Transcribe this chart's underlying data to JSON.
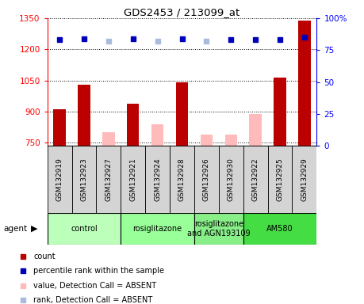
{
  "title": "GDS2453 / 213099_at",
  "samples": [
    "GSM132919",
    "GSM132923",
    "GSM132927",
    "GSM132921",
    "GSM132924",
    "GSM132928",
    "GSM132926",
    "GSM132930",
    "GSM132922",
    "GSM132925",
    "GSM132929"
  ],
  "counts": [
    910,
    1030,
    null,
    940,
    null,
    1040,
    null,
    null,
    null,
    1065,
    1340
  ],
  "counts_absent": [
    null,
    null,
    800,
    null,
    840,
    null,
    790,
    790,
    890,
    null,
    null
  ],
  "ranks": [
    83,
    84,
    null,
    84,
    null,
    84,
    null,
    83,
    83,
    83,
    85
  ],
  "ranks_absent": [
    null,
    null,
    82,
    null,
    82,
    null,
    82,
    null,
    null,
    null,
    null
  ],
  "ylim_left": [
    735,
    1350
  ],
  "ylim_right": [
    0,
    100
  ],
  "yticks_left": [
    750,
    900,
    1050,
    1200,
    1350
  ],
  "yticks_right": [
    0,
    25,
    50,
    75,
    100
  ],
  "agent_groups": [
    {
      "label": "control",
      "start": 0,
      "end": 3,
      "color": "#bbffbb"
    },
    {
      "label": "rosiglitazone",
      "start": 3,
      "end": 6,
      "color": "#99ff99"
    },
    {
      "label": "rosiglitazone\nand AGN193109",
      "start": 6,
      "end": 8,
      "color": "#88ee88"
    },
    {
      "label": "AM580",
      "start": 8,
      "end": 11,
      "color": "#44dd44"
    }
  ],
  "bar_width": 0.5,
  "bar_color_present": "#bb0000",
  "bar_color_absent": "#ffbbbb",
  "dot_color_present": "#0000bb",
  "dot_color_absent": "#aabbdd",
  "sample_box_color": "#d4d4d4",
  "legend_items": [
    {
      "label": "count",
      "color": "#bb0000"
    },
    {
      "label": "percentile rank within the sample",
      "color": "#0000bb"
    },
    {
      "label": "value, Detection Call = ABSENT",
      "color": "#ffbbbb"
    },
    {
      "label": "rank, Detection Call = ABSENT",
      "color": "#aabbdd"
    }
  ]
}
